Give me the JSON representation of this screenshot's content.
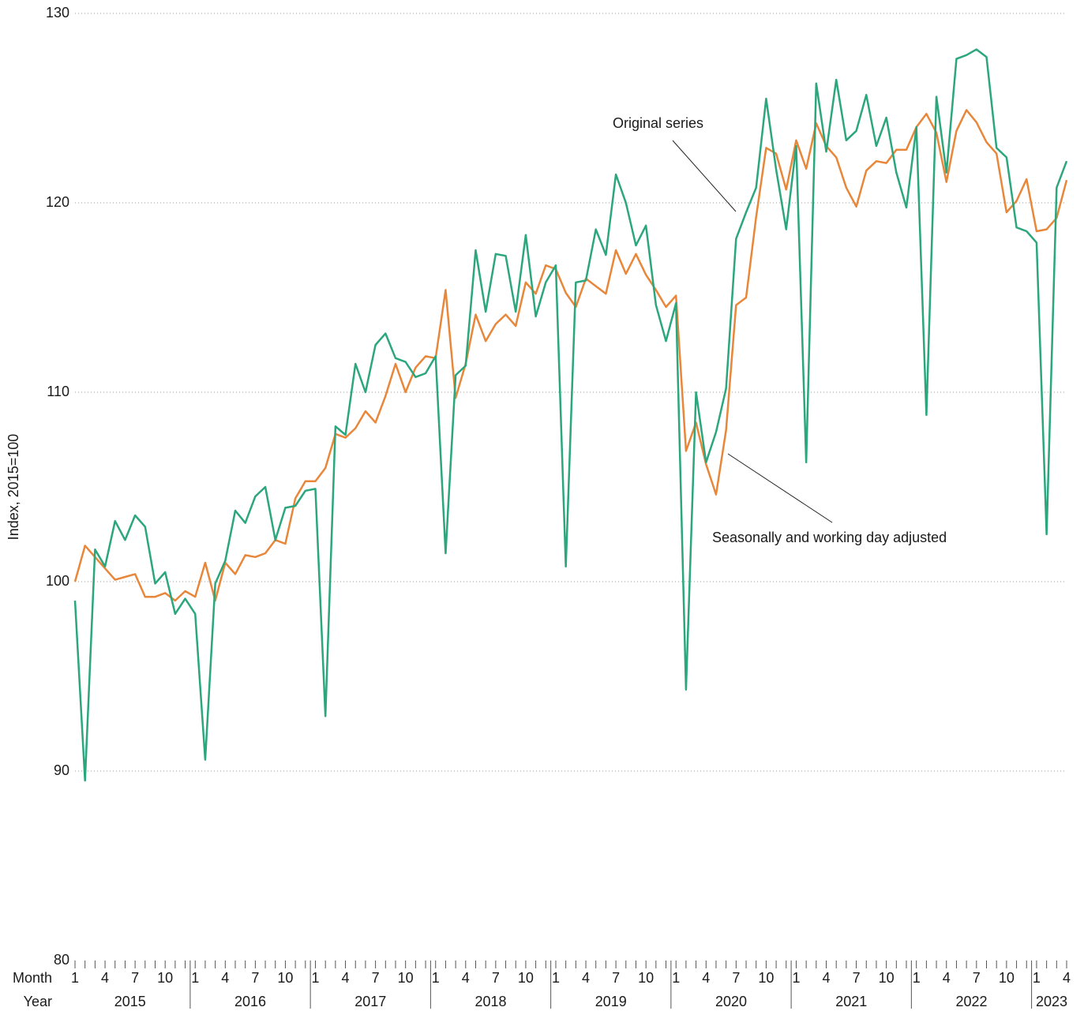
{
  "chart_data": {
    "type": "line",
    "y_label": "Index, 2015=100",
    "x_row_labels": [
      "Month",
      "Year"
    ],
    "categories": [
      "1",
      null,
      null,
      "4",
      null,
      null,
      "7",
      null,
      null,
      "10",
      null,
      null,
      "1",
      null,
      null,
      "4",
      null,
      null,
      "7",
      null,
      null,
      "10",
      null,
      null,
      "1",
      null,
      null,
      "4",
      null,
      null,
      "7",
      null,
      null,
      "10",
      null,
      null,
      "1",
      null,
      null,
      "4",
      null,
      null,
      "7",
      null,
      null,
      "10",
      null,
      null,
      "1",
      null,
      null,
      "4",
      null,
      null,
      "7",
      null,
      null,
      "10",
      null,
      null,
      "1",
      null,
      null,
      "4",
      null,
      null,
      "7",
      null,
      null,
      "10",
      null,
      null,
      "1",
      null,
      null,
      "4",
      null,
      null,
      "7",
      null,
      null,
      "10",
      null,
      null,
      "1",
      null,
      null,
      "4",
      null,
      null,
      "7",
      null,
      null,
      "10",
      null,
      null,
      "1",
      null,
      null,
      "4"
    ],
    "years": [
      "2015",
      "2016",
      "2017",
      "2018",
      "2019",
      "2020",
      "2021",
      "2022",
      "2023"
    ],
    "series": [
      {
        "name": "Original series",
        "color": "#2ba67d",
        "values": [
          99.0,
          89.5,
          101.7,
          100.8,
          103.2,
          102.2,
          103.5,
          102.9,
          99.9,
          100.5,
          98.3,
          99.1,
          98.3,
          90.6,
          99.9,
          101.1,
          103.75,
          103.1,
          104.5,
          105.0,
          102.2,
          103.9,
          104.0,
          104.8,
          104.9,
          92.9,
          108.2,
          107.75,
          111.5,
          110.0,
          112.5,
          113.1,
          111.8,
          111.6,
          110.8,
          111.0,
          111.9,
          101.5,
          110.9,
          111.4,
          117.5,
          114.25,
          117.3,
          117.2,
          114.25,
          118.3,
          114.0,
          115.8,
          116.7,
          100.8,
          115.8,
          115.9,
          118.6,
          117.25,
          121.5,
          120.0,
          117.75,
          118.8,
          114.6,
          112.7,
          114.7,
          94.3,
          110.0,
          106.3,
          107.9,
          110.2,
          118.1,
          119.5,
          120.8,
          125.5,
          121.75,
          118.6,
          123.0,
          106.3,
          126.3,
          122.7,
          126.5,
          123.3,
          123.8,
          125.7,
          123.0,
          124.5,
          121.6,
          119.75,
          124.0,
          108.8,
          125.6,
          121.6,
          127.6,
          127.8,
          128.1,
          127.7,
          122.9,
          122.4,
          118.7,
          118.5,
          117.9,
          102.5,
          120.8,
          122.2
        ]
      },
      {
        "name": "Seasonally and working day adjusted",
        "color": "#e8873a",
        "values": [
          100.0,
          101.9,
          101.3,
          100.7,
          100.1,
          100.25,
          100.4,
          99.2,
          99.2,
          99.4,
          99.0,
          99.5,
          99.2,
          101.0,
          99.0,
          101.0,
          100.4,
          101.4,
          101.3,
          101.5,
          102.2,
          102.0,
          104.4,
          105.3,
          105.3,
          106.0,
          107.8,
          107.6,
          108.1,
          109.0,
          108.4,
          109.8,
          111.5,
          110.0,
          111.3,
          111.9,
          111.8,
          115.4,
          109.7,
          111.5,
          114.1,
          112.7,
          113.6,
          114.1,
          113.5,
          115.8,
          115.2,
          116.7,
          116.5,
          115.25,
          114.5,
          116.0,
          115.6,
          115.2,
          117.5,
          116.25,
          117.3,
          116.2,
          115.4,
          114.5,
          115.1,
          106.9,
          108.4,
          106.2,
          104.6,
          108.0,
          114.6,
          115.0,
          119.25,
          122.9,
          122.6,
          120.7,
          123.3,
          121.8,
          124.2,
          123.0,
          122.4,
          120.8,
          119.8,
          121.7,
          122.2,
          122.1,
          122.8,
          122.8,
          124.0,
          124.7,
          123.7,
          121.1,
          123.8,
          124.9,
          124.25,
          123.2,
          122.6,
          119.5,
          120.1,
          121.25,
          118.5,
          118.6,
          119.2,
          121.2
        ]
      }
    ],
    "ylim": [
      80,
      130
    ],
    "yticks": [
      80,
      90,
      100,
      110,
      120,
      130
    ],
    "grid": true
  }
}
